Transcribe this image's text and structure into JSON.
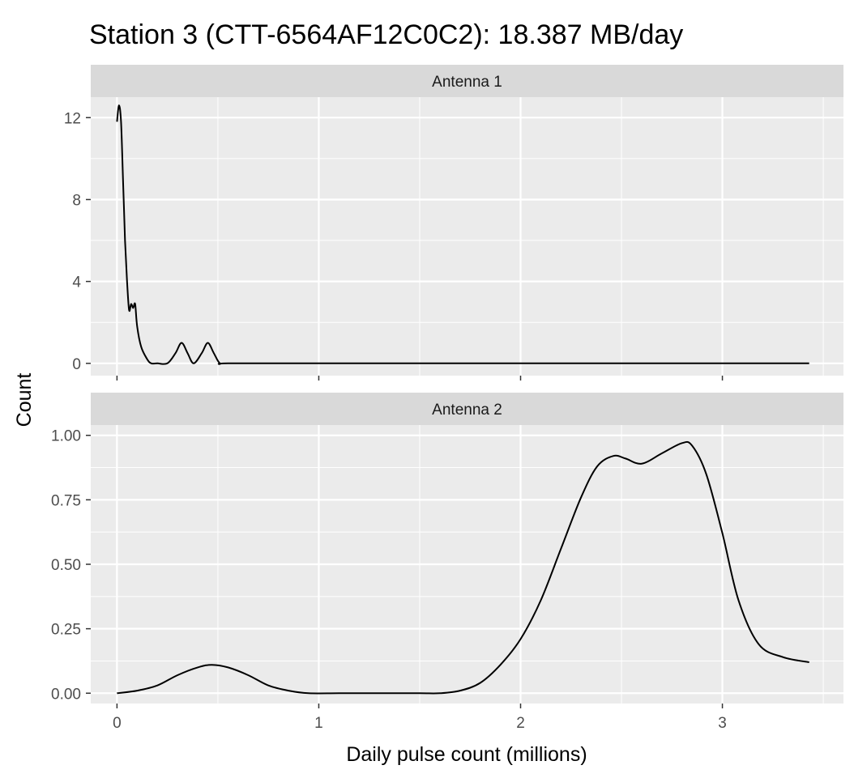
{
  "title": "Station 3 (CTT-6564AF12C0C2): 18.387 MB/day",
  "chart_data": {
    "type": "area",
    "title": "Station 3 (CTT-6564AF12C0C2): 18.387 MB/day",
    "xlabel": "Daily pulse count (millions)",
    "ylabel": "Count",
    "xlim": [
      -0.13,
      3.6
    ],
    "x_ticks": [
      "0",
      "1",
      "2",
      "3"
    ],
    "grid": true,
    "legend": "none",
    "colors": {
      "panel": "#ebebeb",
      "strip": "#d9d9d9",
      "grid": "#ffffff",
      "line": "#000000"
    },
    "panels": [
      {
        "strip": "Antenna 1",
        "ylim": [
          -0.6,
          13.0
        ],
        "y_ticks": [
          0,
          4,
          8,
          12
        ],
        "y_tick_labels": [
          "0",
          "4",
          "8",
          "12"
        ],
        "series": [
          {
            "x": [
              0.0,
              0.01,
              0.02,
              0.03,
              0.04,
              0.05,
              0.06,
              0.07,
              0.08,
              0.09,
              0.1,
              0.12,
              0.15,
              0.17,
              0.2,
              0.25,
              0.29,
              0.32,
              0.35,
              0.38,
              0.42,
              0.45,
              0.48,
              0.51,
              0.55,
              1.0,
              2.0,
              3.0,
              3.43
            ],
            "y": [
              11.8,
              12.6,
              11.8,
              9.0,
              6.0,
              4.0,
              2.6,
              2.9,
              2.7,
              2.9,
              1.8,
              0.8,
              0.2,
              0.0,
              0.0,
              0.0,
              0.5,
              1.0,
              0.5,
              0.0,
              0.5,
              1.0,
              0.5,
              0.0,
              0.0,
              0.0,
              0.0,
              0.0,
              0.0
            ]
          }
        ]
      },
      {
        "strip": "Antenna 2",
        "ylim": [
          -0.04,
          1.04
        ],
        "y_ticks": [
          0,
          0.25,
          0.5,
          0.75,
          1.0
        ],
        "y_tick_labels": [
          "0.00",
          "0.25",
          "0.50",
          "0.75",
          "1.00"
        ],
        "series": [
          {
            "x": [
              0.0,
              0.1,
              0.2,
              0.3,
              0.4,
              0.47,
              0.55,
              0.65,
              0.75,
              0.85,
              0.95,
              1.1,
              1.3,
              1.5,
              1.6,
              1.7,
              1.8,
              1.9,
              2.0,
              2.1,
              2.2,
              2.3,
              2.38,
              2.46,
              2.52,
              2.6,
              2.7,
              2.8,
              2.85,
              2.92,
              3.0,
              3.08,
              3.18,
              3.3,
              3.43
            ],
            "y": [
              0.0,
              0.01,
              0.03,
              0.07,
              0.1,
              0.11,
              0.1,
              0.07,
              0.03,
              0.01,
              0.0,
              0.0,
              0.0,
              0.0,
              0.0,
              0.01,
              0.04,
              0.11,
              0.21,
              0.36,
              0.56,
              0.76,
              0.88,
              0.92,
              0.91,
              0.89,
              0.93,
              0.97,
              0.96,
              0.85,
              0.62,
              0.36,
              0.19,
              0.14,
              0.12
            ]
          }
        ]
      }
    ]
  }
}
